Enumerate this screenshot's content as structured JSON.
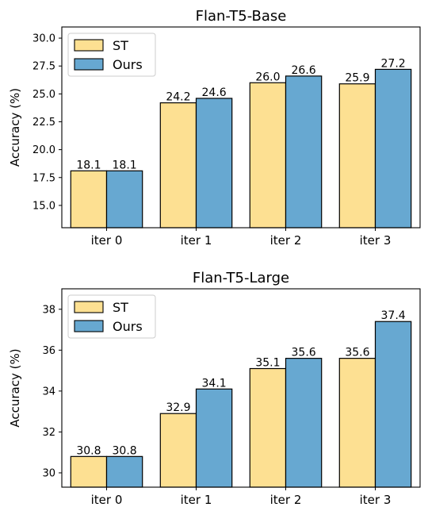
{
  "chart_data": [
    {
      "type": "bar",
      "title": "Flan-T5-Base",
      "xlabel": "",
      "ylabel": "Accuracy (%)",
      "categories": [
        "iter 0",
        "iter 1",
        "iter 2",
        "iter 3"
      ],
      "series": [
        {
          "name": "ST",
          "values": [
            18.1,
            24.2,
            26.0,
            25.9
          ],
          "labels": [
            "18.1",
            "24.2",
            "26.0",
            "25.9"
          ],
          "color": "#fde092"
        },
        {
          "name": "Ours",
          "values": [
            18.1,
            24.6,
            26.6,
            27.2
          ],
          "labels": [
            "18.1",
            "24.6",
            "26.6",
            "27.2"
          ],
          "color": "#67a8d1"
        }
      ],
      "ylim": [
        13.0,
        31.0
      ],
      "yticks": [
        15.0,
        17.5,
        20.0,
        22.5,
        25.0,
        27.5,
        30.0
      ],
      "ytick_labels": [
        "15.0",
        "17.5",
        "20.0",
        "22.5",
        "25.0",
        "27.5",
        "30.0"
      ],
      "grid": false,
      "legend_position": "top-left"
    },
    {
      "type": "bar",
      "title": "Flan-T5-Large",
      "xlabel": "",
      "ylabel": "Accuracy (%)",
      "categories": [
        "iter 0",
        "iter 1",
        "iter 2",
        "iter 3"
      ],
      "series": [
        {
          "name": "ST",
          "values": [
            30.8,
            32.9,
            35.1,
            35.6
          ],
          "labels": [
            "30.8",
            "32.9",
            "35.1",
            "35.6"
          ],
          "color": "#fde092"
        },
        {
          "name": "Ours",
          "values": [
            30.8,
            34.1,
            35.6,
            37.4
          ],
          "labels": [
            "30.8",
            "34.1",
            "35.6",
            "37.4"
          ],
          "color": "#67a8d1"
        }
      ],
      "ylim": [
        29.3,
        39.0
      ],
      "yticks": [
        30,
        32,
        34,
        36,
        38
      ],
      "ytick_labels": [
        "30",
        "32",
        "34",
        "36",
        "38"
      ],
      "grid": false,
      "legend_position": "top-left"
    }
  ]
}
